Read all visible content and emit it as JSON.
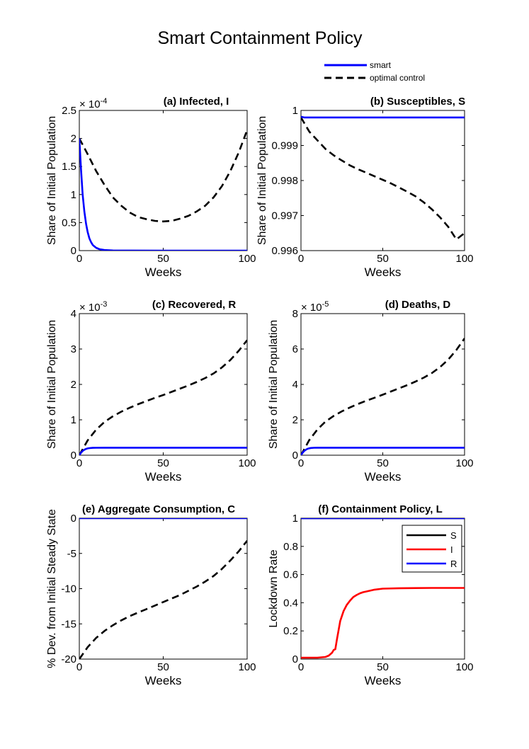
{
  "figure_title": "Smart Containment Policy",
  "legend": {
    "entries": [
      {
        "label": "smart",
        "color": "#0000ff",
        "style": "solid"
      },
      {
        "label": "optimal control",
        "color": "#000000",
        "style": "dashed"
      }
    ]
  },
  "chart_data": [
    {
      "type": "line",
      "title": "(a) Infected, I",
      "xlabel": "Weeks",
      "ylabel": "Share of Initial Population",
      "multiplier": "× 10^-4",
      "multiplier_base": "× 10",
      "multiplier_exp": "-4",
      "xlim": [
        0,
        100
      ],
      "ylim": [
        0,
        2.5
      ],
      "xticks": [
        0,
        50,
        100
      ],
      "xtick_labels": [
        "0",
        "50",
        "100"
      ],
      "yticks": [
        0,
        0.5,
        1,
        1.5,
        2,
        2.5
      ],
      "ytick_labels": [
        "0",
        "0.5",
        "1",
        "1.5",
        "2",
        "2.5"
      ],
      "series": [
        {
          "name": "smart",
          "color": "#0000ff",
          "style": "solid",
          "x": [
            0,
            1,
            2,
            3,
            4,
            5,
            6,
            7,
            8,
            10,
            12,
            15,
            20,
            30,
            50,
            75,
            100
          ],
          "y": [
            2,
            1.45,
            1.0,
            0.7,
            0.48,
            0.33,
            0.22,
            0.15,
            0.1,
            0.05,
            0.025,
            0.01,
            0.003,
            0.001,
            0,
            0,
            0
          ]
        },
        {
          "name": "optimal control",
          "color": "#000000",
          "style": "dashed",
          "x": [
            0,
            5,
            10,
            15,
            20,
            25,
            30,
            35,
            40,
            45,
            50,
            55,
            60,
            65,
            70,
            75,
            80,
            85,
            90,
            95,
            100
          ],
          "y": [
            2.0,
            1.72,
            1.42,
            1.17,
            0.95,
            0.8,
            0.68,
            0.6,
            0.56,
            0.53,
            0.52,
            0.53,
            0.57,
            0.62,
            0.7,
            0.8,
            0.95,
            1.15,
            1.42,
            1.75,
            2.15
          ]
        }
      ]
    },
    {
      "type": "line",
      "title": "(b) Susceptibles, S",
      "xlabel": "Weeks",
      "ylabel": "Share of Initial Population",
      "xlim": [
        0,
        100
      ],
      "ylim": [
        0.996,
        1
      ],
      "xticks": [
        0,
        50,
        100
      ],
      "xtick_labels": [
        "0",
        "50",
        "100"
      ],
      "yticks": [
        0.996,
        0.997,
        0.998,
        0.999,
        1
      ],
      "ytick_labels": [
        "0.996",
        "0.997",
        "0.998",
        "0.999",
        "1"
      ],
      "series": [
        {
          "name": "smart",
          "color": "#0000ff",
          "style": "solid",
          "x": [
            0,
            2,
            5,
            10,
            20,
            50,
            100
          ],
          "y": [
            0.99982,
            0.9998,
            0.9998,
            0.9998,
            0.9998,
            0.9998,
            0.9998
          ]
        },
        {
          "name": "optimal control",
          "color": "#000000",
          "style": "dashed",
          "x": [
            0,
            5,
            10,
            15,
            20,
            25,
            30,
            35,
            40,
            45,
            50,
            55,
            60,
            65,
            70,
            75,
            80,
            85,
            90,
            95,
            100
          ],
          "y": [
            0.9998,
            0.9994,
            0.99915,
            0.9989,
            0.99872,
            0.99857,
            0.99843,
            0.99832,
            0.99822,
            0.99812,
            0.99802,
            0.99792,
            0.9978,
            0.99768,
            0.99755,
            0.99738,
            0.99718,
            0.99695,
            0.99668,
            0.99632,
            0.9965
          ]
        }
      ]
    },
    {
      "type": "line",
      "title": "(c) Recovered, R",
      "xlabel": "Weeks",
      "ylabel": "Share of Initial Population",
      "multiplier": "× 10^-3",
      "multiplier_base": "× 10",
      "multiplier_exp": "-3",
      "xlim": [
        0,
        100
      ],
      "ylim": [
        0,
        4
      ],
      "xticks": [
        0,
        50,
        100
      ],
      "xtick_labels": [
        "0",
        "50",
        "100"
      ],
      "yticks": [
        0,
        1,
        2,
        3,
        4
      ],
      "ytick_labels": [
        "0",
        "1",
        "2",
        "3",
        "4"
      ],
      "series": [
        {
          "name": "smart",
          "color": "#0000ff",
          "style": "solid",
          "x": [
            0,
            1,
            2,
            3,
            4,
            5,
            6,
            8,
            10,
            15,
            20,
            50,
            100
          ],
          "y": [
            0,
            0.07,
            0.12,
            0.155,
            0.178,
            0.192,
            0.2,
            0.207,
            0.21,
            0.212,
            0.212,
            0.212,
            0.212
          ]
        },
        {
          "name": "optimal control",
          "color": "#000000",
          "style": "dashed",
          "x": [
            0,
            5,
            10,
            15,
            20,
            25,
            30,
            35,
            40,
            45,
            50,
            55,
            60,
            65,
            70,
            75,
            80,
            85,
            90,
            95,
            100
          ],
          "y": [
            0,
            0.42,
            0.72,
            0.94,
            1.1,
            1.23,
            1.34,
            1.44,
            1.53,
            1.62,
            1.7,
            1.79,
            1.88,
            1.97,
            2.07,
            2.18,
            2.31,
            2.48,
            2.69,
            2.95,
            3.25
          ]
        }
      ]
    },
    {
      "type": "line",
      "title": "(d) Deaths, D",
      "xlabel": "Weeks",
      "ylabel": "Share of Initial Population",
      "multiplier": "× 10^-5",
      "multiplier_base": "× 10",
      "multiplier_exp": "-5",
      "xlim": [
        0,
        100
      ],
      "ylim": [
        0,
        8
      ],
      "xticks": [
        0,
        50,
        100
      ],
      "xtick_labels": [
        "0",
        "50",
        "100"
      ],
      "yticks": [
        0,
        2,
        4,
        6,
        8
      ],
      "ytick_labels": [
        "0",
        "2",
        "4",
        "6",
        "8"
      ],
      "series": [
        {
          "name": "smart",
          "color": "#0000ff",
          "style": "solid",
          "x": [
            0,
            1,
            2,
            3,
            4,
            5,
            6,
            8,
            10,
            15,
            20,
            50,
            100
          ],
          "y": [
            0,
            0.14,
            0.24,
            0.31,
            0.36,
            0.39,
            0.41,
            0.42,
            0.425,
            0.425,
            0.425,
            0.425,
            0.425
          ]
        },
        {
          "name": "optimal control",
          "color": "#000000",
          "style": "dashed",
          "x": [
            0,
            5,
            10,
            15,
            20,
            25,
            30,
            35,
            40,
            45,
            50,
            55,
            60,
            65,
            70,
            75,
            80,
            85,
            90,
            95,
            100
          ],
          "y": [
            0,
            0.85,
            1.45,
            1.9,
            2.22,
            2.48,
            2.7,
            2.9,
            3.08,
            3.25,
            3.42,
            3.6,
            3.78,
            3.96,
            4.16,
            4.38,
            4.64,
            4.98,
            5.4,
            5.95,
            6.6
          ]
        }
      ]
    },
    {
      "type": "line",
      "title": "(e) Aggregate Consumption, C",
      "xlabel": "Weeks",
      "ylabel": "% Dev. from Initial Steady State",
      "xlim": [
        0,
        100
      ],
      "ylim": [
        -20,
        0
      ],
      "xticks": [
        0,
        50,
        100
      ],
      "xtick_labels": [
        "0",
        "50",
        "100"
      ],
      "yticks": [
        -20,
        -15,
        -10,
        -5,
        0
      ],
      "ytick_labels": [
        "-20",
        "-15",
        "-10",
        "-5",
        "0"
      ],
      "series": [
        {
          "name": "smart",
          "color": "#0000ff",
          "style": "solid",
          "x": [
            0,
            50,
            100
          ],
          "y": [
            0,
            0,
            0
          ]
        },
        {
          "name": "optimal control",
          "color": "#000000",
          "style": "dashed",
          "x": [
            0,
            5,
            10,
            15,
            20,
            25,
            30,
            35,
            40,
            45,
            50,
            55,
            60,
            65,
            70,
            75,
            80,
            85,
            90,
            95,
            100
          ],
          "y": [
            -20,
            -18.3,
            -17.0,
            -16.0,
            -15.2,
            -14.5,
            -13.9,
            -13.4,
            -12.9,
            -12.4,
            -11.9,
            -11.4,
            -10.9,
            -10.3,
            -9.7,
            -9.0,
            -8.2,
            -7.2,
            -6.0,
            -4.7,
            -3.2
          ]
        }
      ]
    },
    {
      "type": "line",
      "title": "(f) Containment Policy, L",
      "xlabel": "Weeks",
      "ylabel": "Lockdown Rate",
      "xlim": [
        0,
        100
      ],
      "ylim": [
        0,
        1
      ],
      "xticks": [
        0,
        50,
        100
      ],
      "xtick_labels": [
        "0",
        "50",
        "100"
      ],
      "yticks": [
        0,
        0.2,
        0.4,
        0.6,
        0.8,
        1
      ],
      "ytick_labels": [
        "0",
        "0.2",
        "0.4",
        "0.6",
        "0.8",
        "1"
      ],
      "legend_location": "top-right",
      "series": [
        {
          "name": "S",
          "color": "#000000",
          "style": "solid",
          "x": [
            0,
            100
          ],
          "y": [
            1,
            1
          ]
        },
        {
          "name": "I",
          "color": "#ff0000",
          "style": "solid",
          "x": [
            0,
            5,
            10,
            15,
            17,
            19,
            20,
            21,
            22,
            24,
            26,
            28,
            30,
            32,
            34,
            36,
            38,
            40,
            45,
            50,
            60,
            70,
            80,
            90,
            100
          ],
          "y": [
            0.01,
            0.01,
            0.01,
            0.015,
            0.025,
            0.045,
            0.065,
            0.07,
            0.14,
            0.27,
            0.34,
            0.385,
            0.415,
            0.44,
            0.455,
            0.467,
            0.475,
            0.48,
            0.493,
            0.5,
            0.503,
            0.504,
            0.505,
            0.505,
            0.505
          ]
        },
        {
          "name": "R",
          "color": "#0000ff",
          "style": "solid",
          "x": [
            0,
            100
          ],
          "y": [
            1,
            1
          ]
        }
      ]
    }
  ]
}
